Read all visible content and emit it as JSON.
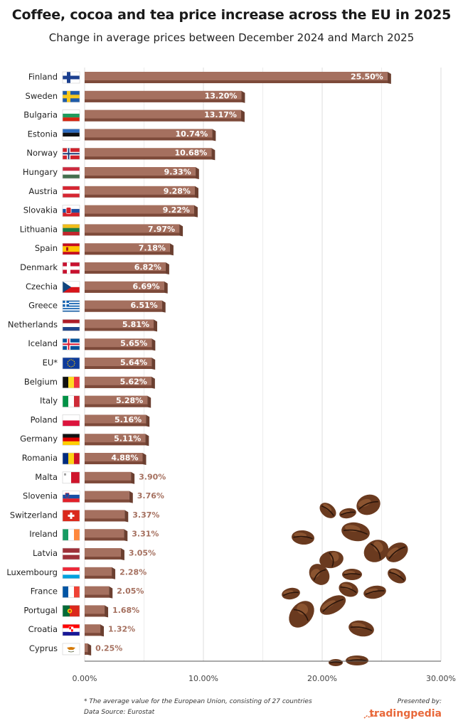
{
  "title": "Coffee, cocoa and tea price increase across the EU in 2025",
  "subtitle": "Change in average prices between December 2024 and March 2025",
  "footnote": "* The average value for the European Union, consisting of 27 countries",
  "source": "Data Source: Eurostat",
  "presented_by": "Presented by:",
  "brand": "tradingpedia",
  "colors": {
    "bar_top": "#a5705f",
    "bar_side": "#6b3f30",
    "bar_bottom": "#7d4a3a",
    "label_inside": "#ffffff",
    "label_outside": "#a5705f",
    "grid": "#dddddd",
    "brand": "#e8683a"
  },
  "chart_data": {
    "type": "bar",
    "orientation": "horizontal",
    "title": "Coffee, cocoa and tea price increase across the EU in 2025",
    "subtitle": "Change in average prices between December 2024 and March 2025",
    "xlim": [
      0,
      30
    ],
    "x_ticks": [
      "0.00%",
      "10.00%",
      "20.00%",
      "30.00%"
    ],
    "x_tick_values": [
      0,
      10,
      20,
      30
    ],
    "grid": true,
    "categories": [
      "Finland",
      "Sweden",
      "Bulgaria",
      "Estonia",
      "Norway",
      "Hungary",
      "Austria",
      "Slovakia",
      "Lithuania",
      "Spain",
      "Denmark",
      "Czechia",
      "Greece",
      "Netherlands",
      "Iceland",
      "EU*",
      "Belgium",
      "Italy",
      "Poland",
      "Germany",
      "Romania",
      "Malta",
      "Slovenia",
      "Switzerland",
      "Ireland",
      "Latvia",
      "Luxembourg",
      "France",
      "Portugal",
      "Croatia",
      "Cyprus"
    ],
    "values": [
      25.5,
      13.2,
      13.17,
      10.74,
      10.68,
      9.33,
      9.28,
      9.22,
      7.97,
      7.18,
      6.82,
      6.69,
      6.51,
      5.81,
      5.65,
      5.64,
      5.62,
      5.28,
      5.16,
      5.11,
      4.88,
      3.9,
      3.76,
      3.37,
      3.31,
      3.05,
      2.28,
      2.05,
      1.68,
      1.32,
      0.25
    ],
    "value_labels": [
      "25.50%",
      "13.20%",
      "13.17%",
      "10.74%",
      "10.68%",
      "9.33%",
      "9.28%",
      "9.22%",
      "7.97%",
      "7.18%",
      "6.82%",
      "6.69%",
      "6.51%",
      "5.81%",
      "5.65%",
      "5.64%",
      "5.62%",
      "5.28%",
      "5.16%",
      "5.11%",
      "4.88%",
      "3.90%",
      "3.76%",
      "3.37%",
      "3.31%",
      "3.05%",
      "2.28%",
      "2.05%",
      "1.68%",
      "1.32%",
      "0.25%"
    ],
    "flags": [
      "finland-flag-icon",
      "sweden-flag-icon",
      "bulgaria-flag-icon",
      "estonia-flag-icon",
      "norway-flag-icon",
      "hungary-flag-icon",
      "austria-flag-icon",
      "slovakia-flag-icon",
      "lithuania-flag-icon",
      "spain-flag-icon",
      "denmark-flag-icon",
      "czechia-flag-icon",
      "greece-flag-icon",
      "netherlands-flag-icon",
      "iceland-flag-icon",
      "eu-flag-icon",
      "belgium-flag-icon",
      "italy-flag-icon",
      "poland-flag-icon",
      "germany-flag-icon",
      "romania-flag-icon",
      "malta-flag-icon",
      "slovenia-flag-icon",
      "switzerland-flag-icon",
      "ireland-flag-icon",
      "latvia-flag-icon",
      "luxembourg-flag-icon",
      "france-flag-icon",
      "portugal-flag-icon",
      "croatia-flag-icon",
      "cyprus-flag-icon"
    ]
  }
}
